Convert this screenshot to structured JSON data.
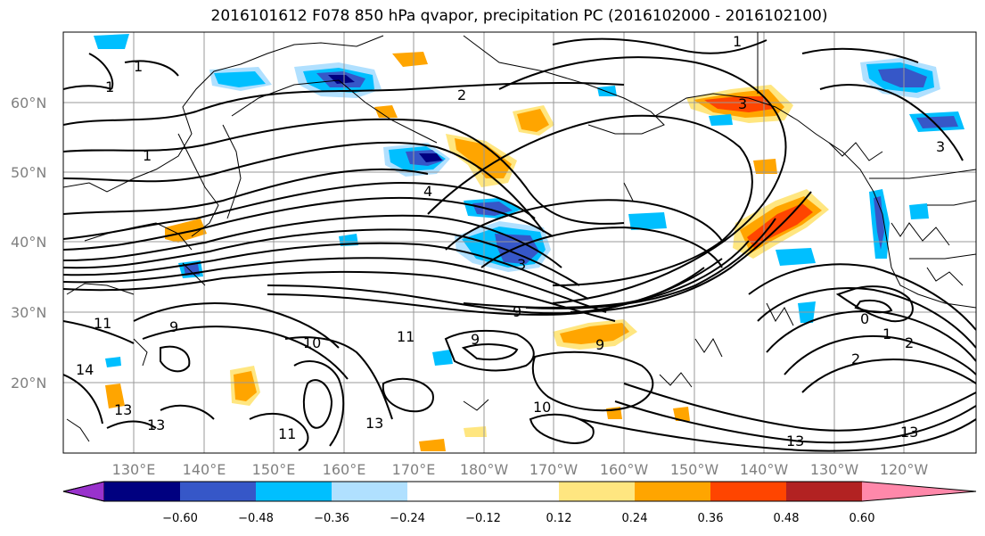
{
  "title": "2016101612 F078 850 hPa qvapor, precipitation PC (2016102000 - 2016102100)",
  "latitude_labels": [
    "60°N",
    "50°N",
    "40°N",
    "30°N",
    "20°N"
  ],
  "longitude_labels": [
    "130°E",
    "140°E",
    "150°E",
    "160°E",
    "170°E",
    "180°W",
    "170°W",
    "160°W",
    "150°W",
    "140°W",
    "130°W",
    "120°W"
  ],
  "colorbar": {
    "ticks": [
      "−0.60",
      "−0.48",
      "−0.36",
      "−0.24",
      "−0.12",
      "0.12",
      "0.24",
      "0.36",
      "0.48",
      "0.60"
    ],
    "colors": [
      "#9932cc",
      "#000080",
      "#3657c8",
      "#00bfff",
      "#b0e0ff",
      "#ffffff",
      "#ffe680",
      "#ffa500",
      "#ff4500",
      "#b22222",
      "#ff88aa"
    ]
  },
  "contour_labels": [
    "1",
    "1",
    "1",
    "1",
    "2",
    "3",
    "3",
    "4",
    "9",
    "9",
    "9",
    "10",
    "10",
    "11",
    "11",
    "11",
    "13",
    "13",
    "13",
    "13",
    "13",
    "0",
    "1",
    "2",
    "2",
    "3",
    "9",
    "14"
  ],
  "colors": {
    "contour": "#000000",
    "coast": "#000000",
    "grid": "#999999",
    "label": "#808080"
  }
}
